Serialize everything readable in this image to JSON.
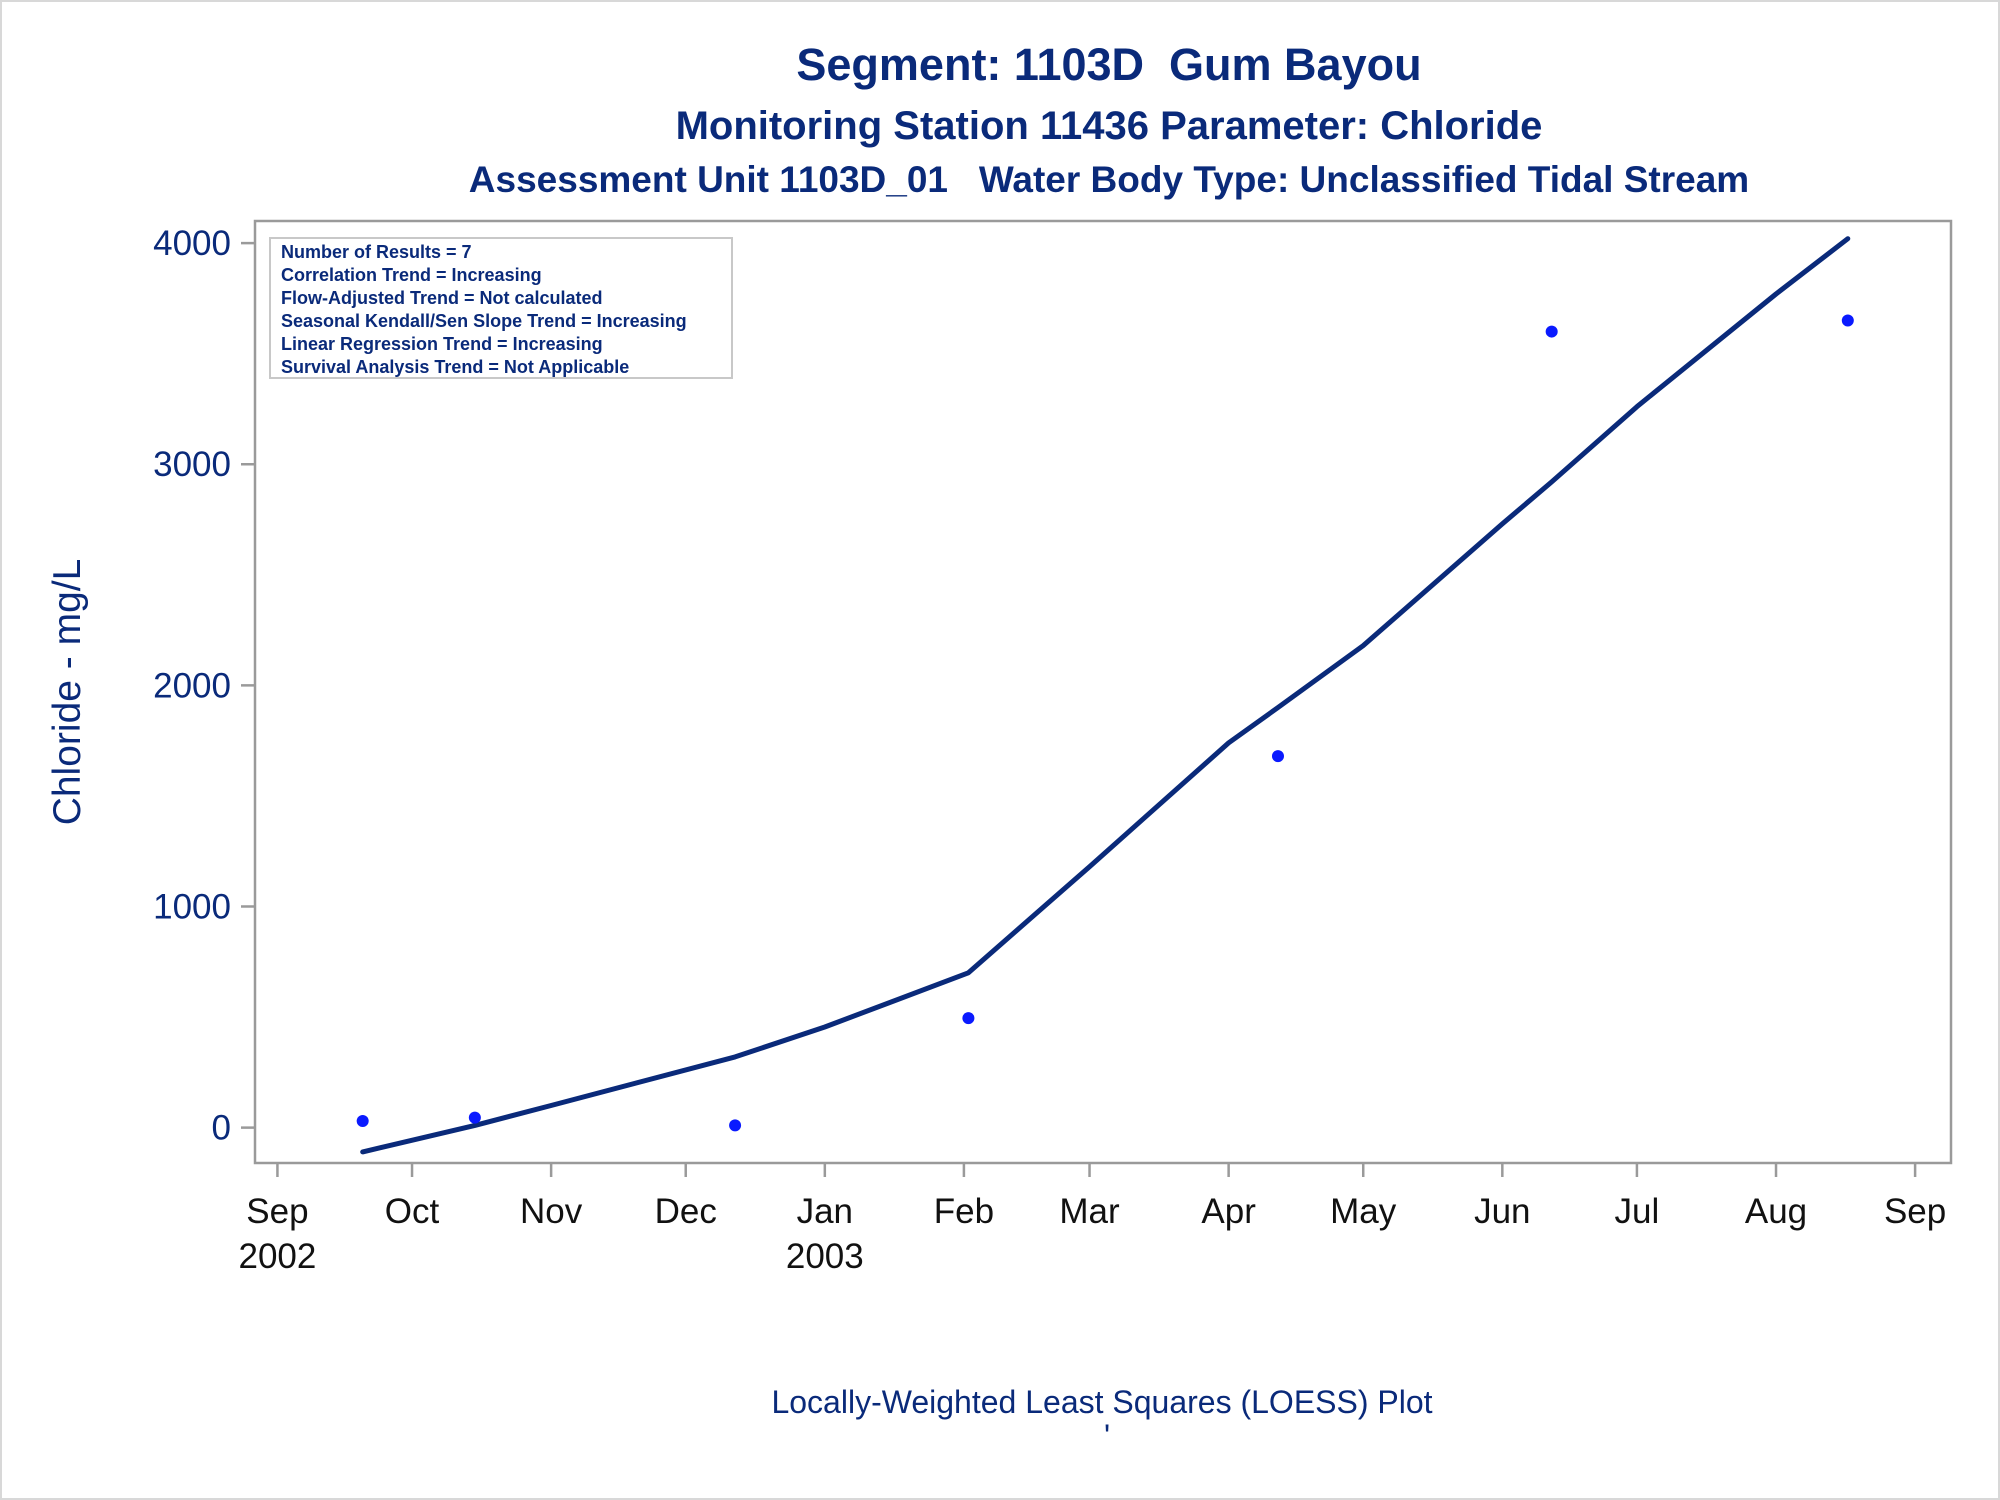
{
  "titles": {
    "line1": "Segment: 1103D  Gum Bayou",
    "line2": "Monitoring Station 11436 Parameter: Chloride",
    "line3": "Assessment Unit 1103D_01   Water Body Type: Unclassified Tidal Stream"
  },
  "footnote": {
    "text": "Locally-Weighted Least Squares (LOESS) Plot",
    "mark": "'"
  },
  "inset": {
    "lines": [
      "Number of Results = 7",
      "Correlation Trend = Increasing",
      "Flow-Adjusted Trend = Not calculated",
      "Seasonal Kendall/Sen Slope Trend = Increasing",
      "Linear Regression Trend = Increasing",
      "Survival Analysis Trend = Not Applicable"
    ]
  },
  "colors": {
    "points": "#0a1aff",
    "line": "#0a2a7a",
    "frame": "#9a9a9a",
    "text": "#0a2a7a"
  },
  "chart_data": {
    "type": "scatter",
    "title": "Segment: 1103D  Gum Bayou",
    "ylabel": "Chloride - mg/L",
    "xlabel": "",
    "x_type": "date",
    "xlim": [
      "2002-08-27",
      "2003-09-09"
    ],
    "ylim": [
      -160,
      4100
    ],
    "yticks": [
      0,
      1000,
      2000,
      3000,
      4000
    ],
    "xticks": [
      {
        "date": "2002-09-01",
        "label": "Sep",
        "label2": "2002"
      },
      {
        "date": "2002-10-01",
        "label": "Oct",
        "label2": ""
      },
      {
        "date": "2002-11-01",
        "label": "Nov",
        "label2": ""
      },
      {
        "date": "2002-12-01",
        "label": "Dec",
        "label2": ""
      },
      {
        "date": "2003-01-01",
        "label": "Jan",
        "label2": "2003"
      },
      {
        "date": "2003-02-01",
        "label": "Feb",
        "label2": ""
      },
      {
        "date": "2003-03-01",
        "label": "Mar",
        "label2": ""
      },
      {
        "date": "2003-04-01",
        "label": "Apr",
        "label2": ""
      },
      {
        "date": "2003-05-01",
        "label": "May",
        "label2": ""
      },
      {
        "date": "2003-06-01",
        "label": "Jun",
        "label2": ""
      },
      {
        "date": "2003-07-01",
        "label": "Jul",
        "label2": ""
      },
      {
        "date": "2003-08-01",
        "label": "Aug",
        "label2": ""
      },
      {
        "date": "2003-09-01",
        "label": "Sep",
        "label2": ""
      }
    ],
    "grid": false,
    "points": [
      {
        "x": "2002-09-20",
        "y": 30
      },
      {
        "x": "2002-10-15",
        "y": 45
      },
      {
        "x": "2002-12-12",
        "y": 10
      },
      {
        "x": "2003-02-02",
        "y": 495
      },
      {
        "x": "2003-04-12",
        "y": 1680
      },
      {
        "x": "2003-06-12",
        "y": 3600
      },
      {
        "x": "2003-08-17",
        "y": 3650
      }
    ],
    "loess": [
      {
        "x": "2002-09-20",
        "y": -110
      },
      {
        "x": "2002-10-15",
        "y": 10
      },
      {
        "x": "2002-11-01",
        "y": 100
      },
      {
        "x": "2002-12-12",
        "y": 320
      },
      {
        "x": "2003-01-01",
        "y": 455
      },
      {
        "x": "2003-02-02",
        "y": 700
      },
      {
        "x": "2003-03-01",
        "y": 1180
      },
      {
        "x": "2003-04-01",
        "y": 1740
      },
      {
        "x": "2003-04-12",
        "y": 1900
      },
      {
        "x": "2003-05-01",
        "y": 2180
      },
      {
        "x": "2003-06-01",
        "y": 2730
      },
      {
        "x": "2003-06-12",
        "y": 2920
      },
      {
        "x": "2003-07-01",
        "y": 3260
      },
      {
        "x": "2003-08-01",
        "y": 3770
      },
      {
        "x": "2003-08-17",
        "y": 4020
      }
    ]
  }
}
